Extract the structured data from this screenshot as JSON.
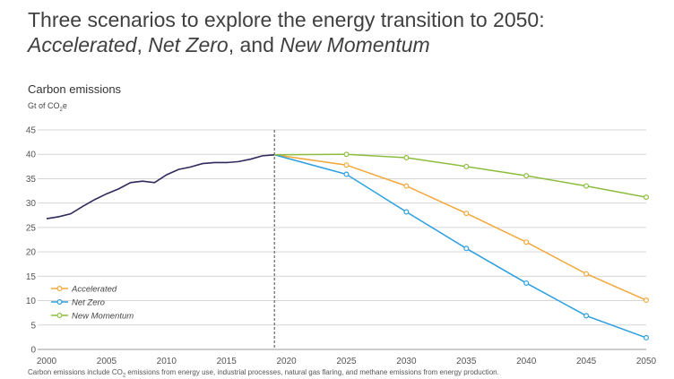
{
  "header": {
    "title_line1": "Three scenarios to explore the energy transition to 2050:",
    "title_s1": "Accelerated",
    "title_sep1": ", ",
    "title_s2": "Net Zero",
    "title_sep2": ", and ",
    "title_s3": "New Momentum"
  },
  "chart_data": {
    "type": "line",
    "title": "Carbon emissions",
    "ylabel_pre": "Gt of CO",
    "ylabel_sub": "2",
    "ylabel_post": "e",
    "xlim": [
      2000,
      2050
    ],
    "ylim": [
      0,
      45
    ],
    "x_ticks": [
      2000,
      2005,
      2010,
      2015,
      2020,
      2025,
      2030,
      2035,
      2040,
      2045,
      2050
    ],
    "y_ticks": [
      0,
      5,
      10,
      15,
      20,
      25,
      30,
      35,
      40,
      45
    ],
    "grid": "horizontal",
    "divider_year": 2019,
    "legend_position": "bottom-left",
    "historical": {
      "color": "#2e2a5c",
      "x": [
        2000,
        2001,
        2002,
        2003,
        2004,
        2005,
        2006,
        2007,
        2008,
        2009,
        2010,
        2011,
        2012,
        2013,
        2014,
        2015,
        2016,
        2017,
        2018,
        2019
      ],
      "y": [
        26.8,
        27.2,
        27.8,
        29.3,
        30.7,
        31.9,
        32.9,
        34.2,
        34.5,
        34.2,
        35.8,
        36.9,
        37.4,
        38.1,
        38.3,
        38.3,
        38.5,
        39.0,
        39.7,
        39.9
      ]
    },
    "series": [
      {
        "name": "Accelerated",
        "color": "#f2a83b",
        "x": [
          2019,
          2025,
          2030,
          2035,
          2040,
          2045,
          2050
        ],
        "y": [
          39.9,
          37.8,
          33.5,
          27.9,
          22.0,
          15.5,
          10.1
        ]
      },
      {
        "name": "Net Zero",
        "color": "#2b9fdf",
        "x": [
          2019,
          2025,
          2030,
          2035,
          2040,
          2045,
          2050
        ],
        "y": [
          39.9,
          35.9,
          28.2,
          20.7,
          13.6,
          6.9,
          2.4
        ]
      },
      {
        "name": "New Momentum",
        "color": "#8cbd3f",
        "x": [
          2019,
          2025,
          2030,
          2035,
          2040,
          2045,
          2050
        ],
        "y": [
          39.9,
          40.0,
          39.3,
          37.5,
          35.6,
          33.5,
          31.2
        ]
      }
    ]
  },
  "footnote": {
    "pre": "Carbon emissions include CO",
    "sub": "2",
    "post": " emissions from energy use, industrial processes, natural gas flaring, and methane emissions from energy production."
  }
}
